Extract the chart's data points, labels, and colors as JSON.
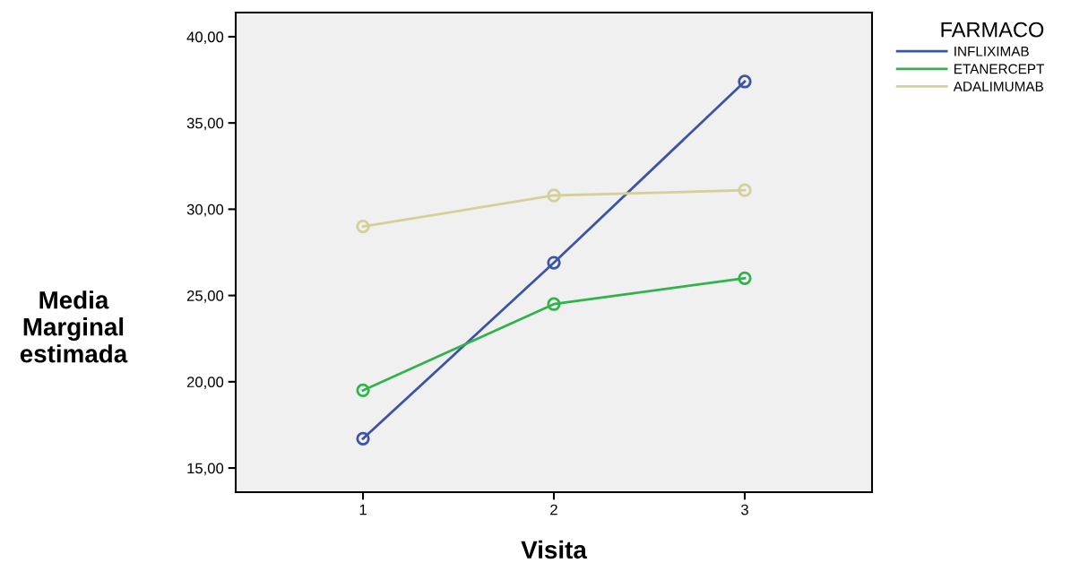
{
  "chart_data": {
    "type": "line",
    "xlabel": "Visita",
    "ylabel": "Media\nMarginal\nestimada",
    "legend_title": "FARMACO",
    "categories": [
      "1",
      "2",
      "3"
    ],
    "series": [
      {
        "name": "INFLIXIMAB",
        "color": "#3c54a6",
        "values": [
          16.7,
          26.9,
          37.4
        ]
      },
      {
        "name": "ETANERCEPT",
        "color": "#2fb34a",
        "values": [
          19.5,
          24.5,
          26.0
        ]
      },
      {
        "name": "ADALIMUMAB",
        "color": "#d5d09a",
        "values": [
          29.0,
          30.8,
          31.1
        ]
      }
    ],
    "ylim": [
      13.6,
      41.4
    ],
    "yticks": [
      {
        "value": 15,
        "label": "15,00"
      },
      {
        "value": 20,
        "label": "20,00"
      },
      {
        "value": 25,
        "label": "25,00"
      },
      {
        "value": 30,
        "label": "30,00"
      },
      {
        "value": 35,
        "label": "35,00"
      },
      {
        "value": 40,
        "label": "40,00"
      }
    ],
    "marker": "circle",
    "legend": "top right",
    "grid": false
  }
}
